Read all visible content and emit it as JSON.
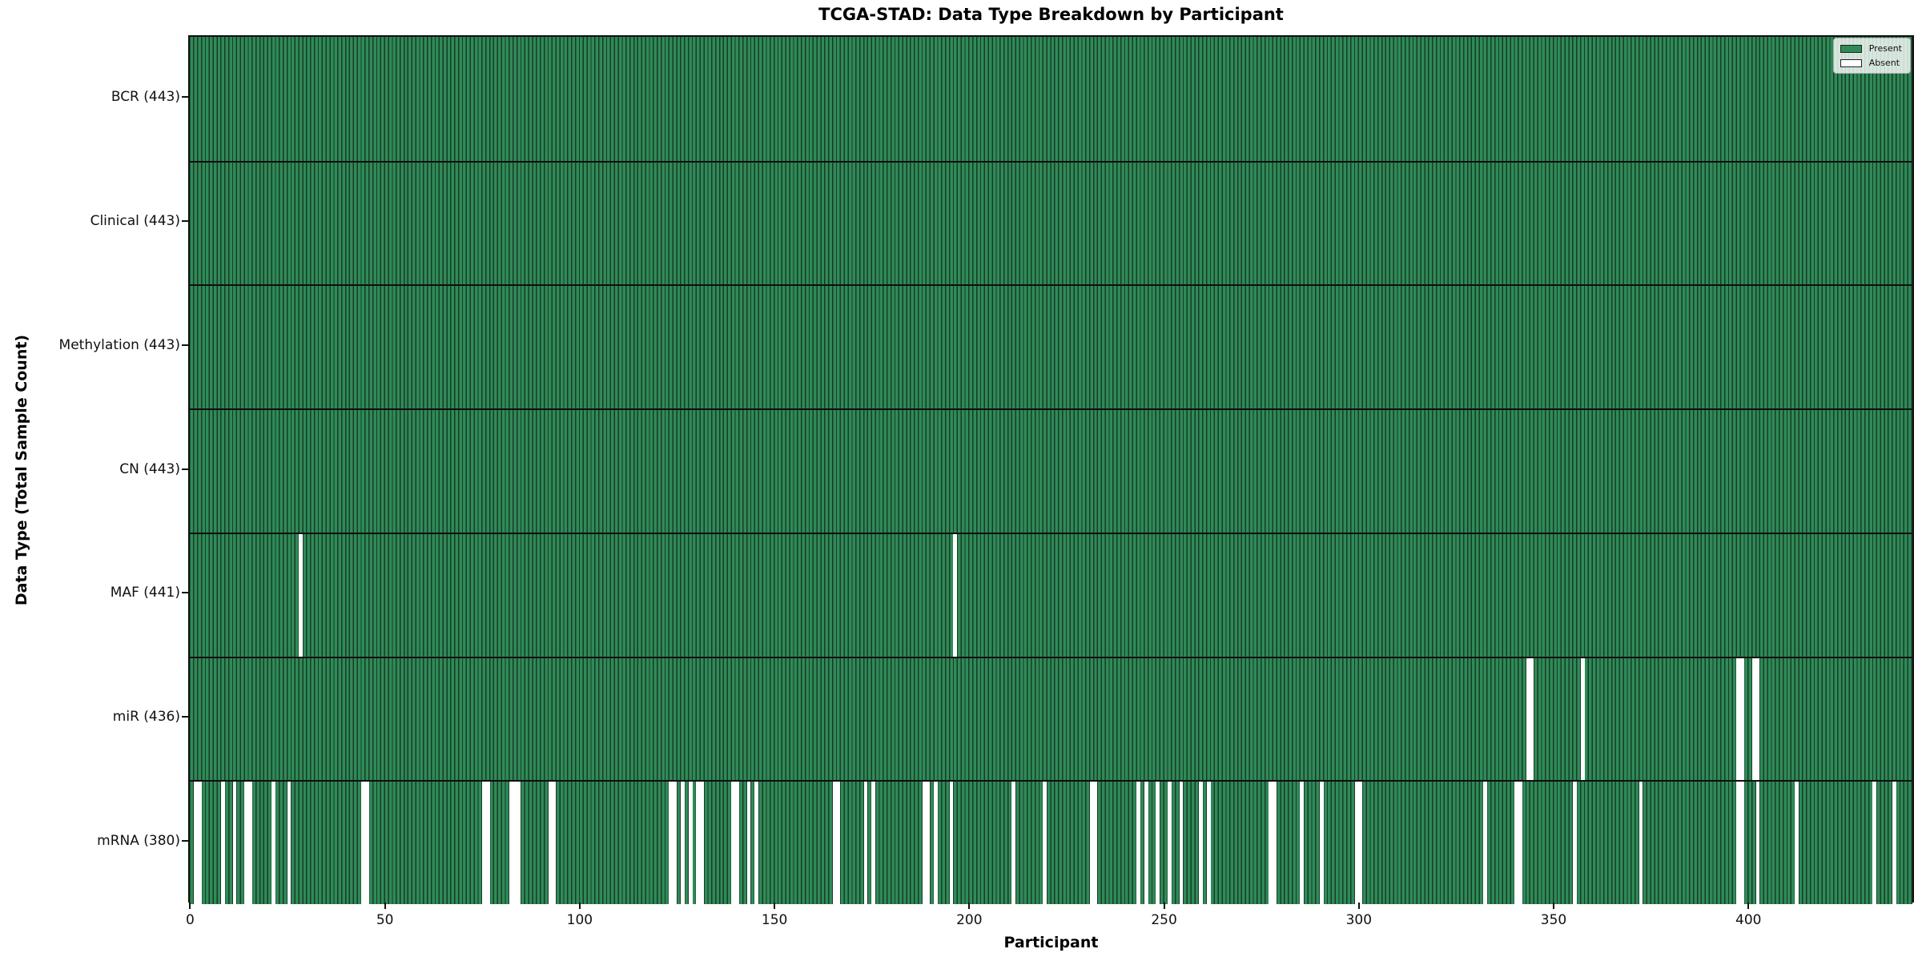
{
  "title": "TCGA-STAD: Data Type Breakdown by Participant",
  "chart_data": {
    "type": "heatmap",
    "title": "TCGA-STAD: Data Type Breakdown by Participant",
    "xlabel": "Participant",
    "ylabel": "Data Type (Total Sample Count)",
    "x_ticks": [
      0,
      50,
      100,
      150,
      200,
      250,
      300,
      350,
      400
    ],
    "n_participants": 443,
    "x_range": [
      -0.5,
      442.5
    ],
    "grid": "off",
    "legend": {
      "position": "upper right",
      "entries": [
        {
          "label": "Present",
          "color": "#2e8b57"
        },
        {
          "label": "Absent",
          "color": "#ffffff"
        }
      ]
    },
    "colors": {
      "present": "#2e8b57",
      "absent": "#ffffff",
      "bar_edge": "#1b3a29",
      "separator": "#0f0f0f"
    },
    "rows": [
      {
        "label": "BCR (443)",
        "data_type": "BCR",
        "total": 443,
        "absent_participants": []
      },
      {
        "label": "Clinical (443)",
        "data_type": "Clinical",
        "total": 443,
        "absent_participants": []
      },
      {
        "label": "Methylation (443)",
        "data_type": "Methylation",
        "total": 443,
        "absent_participants": []
      },
      {
        "label": "CN (443)",
        "data_type": "CN",
        "total": 443,
        "absent_participants": []
      },
      {
        "label": "MAF (441)",
        "data_type": "MAF",
        "total": 441,
        "absent_participants": [
          28,
          196
        ]
      },
      {
        "label": "miR (436)",
        "data_type": "miR",
        "total": 436,
        "absent_participants": [
          343,
          344,
          357,
          397,
          398,
          401,
          402
        ]
      },
      {
        "label": "mRNA (380)",
        "data_type": "mRNA",
        "total": 380,
        "absent_participants": [
          1,
          2,
          8,
          11,
          14,
          15,
          21,
          25,
          44,
          45,
          75,
          76,
          82,
          83,
          84,
          92,
          93,
          123,
          124,
          126,
          128,
          130,
          131,
          139,
          140,
          143,
          145,
          165,
          166,
          173,
          175,
          188,
          189,
          191,
          195,
          211,
          219,
          231,
          232,
          243,
          245,
          248,
          251,
          254,
          259,
          261,
          277,
          278,
          285,
          290,
          299,
          300,
          332,
          340,
          341,
          355,
          372,
          397,
          398,
          402,
          412,
          432,
          437
        ]
      }
    ]
  }
}
